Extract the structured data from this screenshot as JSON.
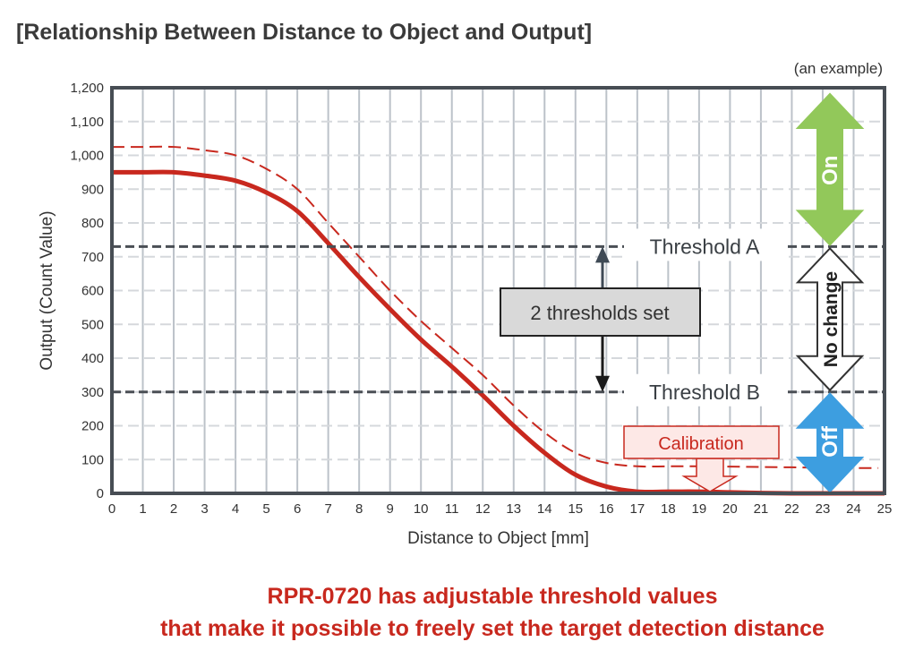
{
  "title": "[Relationship Between Distance to Object and Output]",
  "note": "(an example)",
  "footer": [
    "RPR-0720 has adjustable threshold values",
    "that make it possible to freely set the target detection distance"
  ],
  "chart_data": {
    "type": "line",
    "xlabel": "Distance to Object [mm]",
    "ylabel": "Output (Count Value)",
    "xlim": [
      0,
      25
    ],
    "ylim": [
      0,
      1200
    ],
    "xticks": [
      "0",
      "1",
      "2",
      "3",
      "4",
      "5",
      "6",
      "7",
      "8",
      "9",
      "10",
      "11",
      "12",
      "13",
      "14",
      "15",
      "16",
      "17",
      "18",
      "19",
      "20",
      "21",
      "22",
      "23",
      "24",
      "25"
    ],
    "yticks": [
      "0",
      "100",
      "200",
      "300",
      "400",
      "500",
      "600",
      "700",
      "800",
      "900",
      "1,000",
      "1,100",
      "1,200"
    ],
    "grid": true,
    "series": [
      {
        "style": "solid",
        "color": "#c8281e",
        "x": [
          0,
          1,
          2,
          3,
          4,
          5,
          6,
          7,
          8,
          9,
          10,
          11,
          12,
          13,
          14,
          15,
          16,
          17,
          18,
          19,
          20,
          21,
          22,
          23,
          24,
          25
        ],
        "y": [
          950,
          950,
          950,
          940,
          925,
          890,
          835,
          740,
          640,
          545,
          455,
          375,
          290,
          200,
          120,
          55,
          20,
          5,
          5,
          5,
          3,
          1,
          0,
          0,
          0,
          0
        ]
      },
      {
        "style": "dashed",
        "color": "#c8281e",
        "x": [
          0,
          1,
          2,
          3,
          4,
          5,
          6,
          7,
          8,
          9,
          10,
          11,
          12,
          13,
          14,
          15,
          16,
          17,
          18,
          19,
          20,
          21,
          22,
          23,
          24,
          24.8
        ],
        "y": [
          1025,
          1025,
          1025,
          1015,
          1000,
          960,
          900,
          800,
          700,
          600,
          510,
          430,
          350,
          260,
          180,
          120,
          90,
          80,
          80,
          80,
          79,
          78,
          77,
          76,
          75,
          75
        ]
      }
    ],
    "thresholds": [
      {
        "label": "Threshold A",
        "value": 730
      },
      {
        "label": "Threshold B",
        "value": 300
      }
    ],
    "annotations": {
      "thresholds_box": "2 thresholds set",
      "calibration": "Calibration",
      "zones": [
        {
          "label": "On",
          "color": "#92c85a"
        },
        {
          "label": "No change",
          "color": "#ffffff"
        },
        {
          "label": "Off",
          "color": "#3d9ee0"
        }
      ]
    }
  }
}
